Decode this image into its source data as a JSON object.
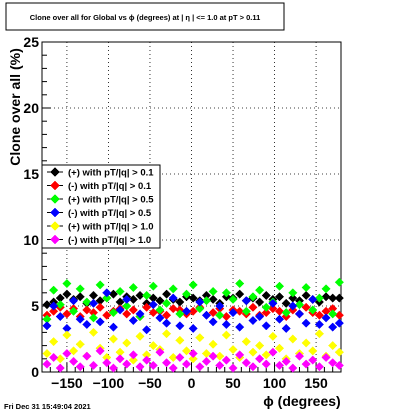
{
  "chart_data": {
    "type": "scatter",
    "title": "Clone  over all for Global vs ϕ (degrees) at |  η | <= 1.0 at pT > 0.11",
    "xlabel": "ϕ (degrees)",
    "ylabel": "Clone  over all (%)",
    "xlim": [
      -180,
      180
    ],
    "ylim": [
      0,
      25
    ],
    "x_ticks": [
      -150,
      -100,
      -50,
      0,
      50,
      100,
      150
    ],
    "x_tick_labels": [
      "−150",
      "−100",
      "−50",
      "0",
      "50",
      "100",
      "150"
    ],
    "y_ticks": [
      0,
      5,
      10,
      15,
      20,
      25
    ],
    "y_tick_labels": [
      "0",
      "5",
      "10",
      "15",
      "20",
      "25"
    ],
    "grid": true,
    "legend_position": "left",
    "timestamp": "Fri Dec 31 15:49:04 2021",
    "x": [
      -174,
      -166,
      -158,
      -150,
      -142,
      -134,
      -126,
      -118,
      -110,
      -102,
      -94,
      -86,
      -78,
      -70,
      -62,
      -54,
      -46,
      -38,
      -30,
      -22,
      -14,
      -6,
      2,
      10,
      18,
      26,
      34,
      42,
      50,
      58,
      66,
      74,
      82,
      90,
      98,
      106,
      114,
      122,
      130,
      138,
      146,
      154,
      162,
      170,
      178
    ],
    "series": [
      {
        "name": "(+) with pT/|q| > 0.1",
        "color": "#000000",
        "values": [
          5.1,
          5.3,
          5.6,
          5.9,
          5.5,
          5.7,
          5.2,
          5.8,
          5.4,
          5.6,
          5.9,
          5.3,
          5.7,
          5.5,
          5.8,
          5.2,
          5.6,
          5.4,
          5.9,
          5.5,
          5.3,
          5.7,
          5.6,
          5.4,
          5.8,
          5.5,
          5.2,
          5.7,
          5.6,
          5.9,
          5.4,
          5.6,
          5.3,
          5.8,
          5.5,
          5.7,
          5.2,
          5.6,
          5.4,
          5.8,
          5.5,
          5.3,
          5.7,
          5.6,
          5.6
        ]
      },
      {
        "name": "(-) with pT/|q| > 0.1",
        "color": "#ff0000",
        "values": [
          4.3,
          4.6,
          4.9,
          4.4,
          4.8,
          4.2,
          4.7,
          4.5,
          4.9,
          4.3,
          4.6,
          4.8,
          4.4,
          4.7,
          4.2,
          4.9,
          4.5,
          4.6,
          4.3,
          4.8,
          4.7,
          4.4,
          4.6,
          4.9,
          4.3,
          4.5,
          4.8,
          4.2,
          4.7,
          4.6,
          4.4,
          4.9,
          4.3,
          4.5,
          4.8,
          4.6,
          4.2,
          4.7,
          4.4,
          4.9,
          4.5,
          4.3,
          4.6,
          4.8,
          4.3
        ]
      },
      {
        "name": "(+) with pT/|q| > 0.5",
        "color": "#00ff00",
        "values": [
          4.0,
          6.2,
          5.1,
          6.7,
          4.6,
          6.3,
          5.3,
          4.1,
          6.6,
          5.6,
          4.5,
          6.1,
          5.0,
          6.4,
          4.2,
          5.8,
          6.5,
          4.7,
          5.2,
          6.3,
          4.4,
          5.9,
          6.6,
          4.8,
          5.4,
          6.1,
          4.3,
          6.0,
          5.5,
          6.7,
          4.6,
          5.7,
          6.2,
          4.9,
          5.3,
          6.5,
          4.5,
          6.0,
          5.1,
          6.4,
          4.7,
          5.6,
          6.3,
          4.4,
          6.8
        ]
      },
      {
        "name": "(-) with pT/|q| > 0.5",
        "color": "#0000ff",
        "values": [
          3.5,
          5.0,
          4.2,
          3.3,
          5.4,
          4.0,
          3.6,
          5.2,
          3.8,
          6.0,
          3.4,
          4.7,
          5.5,
          3.9,
          4.4,
          3.2,
          5.1,
          4.1,
          3.7,
          5.6,
          3.5,
          4.6,
          3.3,
          5.3,
          4.3,
          3.8,
          5.0,
          3.6,
          4.5,
          3.4,
          5.4,
          3.9,
          4.2,
          3.5,
          5.2,
          4.0,
          3.3,
          5.0,
          4.4,
          3.7,
          5.5,
          3.6,
          4.1,
          3.4,
          3.7
        ]
      },
      {
        "name": "(+) with pT/|q| > 1.0",
        "color": "#ffff00",
        "values": [
          1.4,
          2.3,
          1.0,
          2.8,
          1.6,
          2.1,
          1.2,
          3.0,
          1.8,
          1.1,
          2.5,
          1.5,
          2.2,
          0.9,
          2.7,
          1.3,
          2.0,
          1.7,
          2.9,
          1.1,
          2.4,
          1.6,
          1.0,
          2.6,
          1.4,
          2.1,
          1.2,
          2.8,
          1.7,
          1.1,
          2.3,
          1.5,
          2.0,
          1.3,
          2.7,
          1.8,
          1.0,
          2.5,
          1.4,
          2.2,
          1.6,
          2.9,
          1.2,
          2.0,
          1.5
        ]
      },
      {
        "name": "(-) with pT/|q| > 1.0",
        "color": "#ff00ff",
        "values": [
          0.6,
          1.1,
          0.3,
          1.4,
          0.8,
          0.4,
          1.2,
          0.5,
          1.6,
          0.7,
          0.3,
          1.0,
          0.6,
          1.3,
          0.4,
          0.9,
          0.5,
          1.5,
          0.7,
          0.3,
          1.1,
          0.6,
          1.4,
          0.4,
          0.8,
          1.2,
          0.5,
          0.9,
          0.3,
          1.3,
          0.7,
          0.4,
          1.0,
          0.6,
          1.5,
          0.5,
          0.8,
          0.3,
          1.2,
          0.6,
          0.9,
          0.4,
          1.1,
          0.7,
          0.5
        ]
      }
    ]
  }
}
